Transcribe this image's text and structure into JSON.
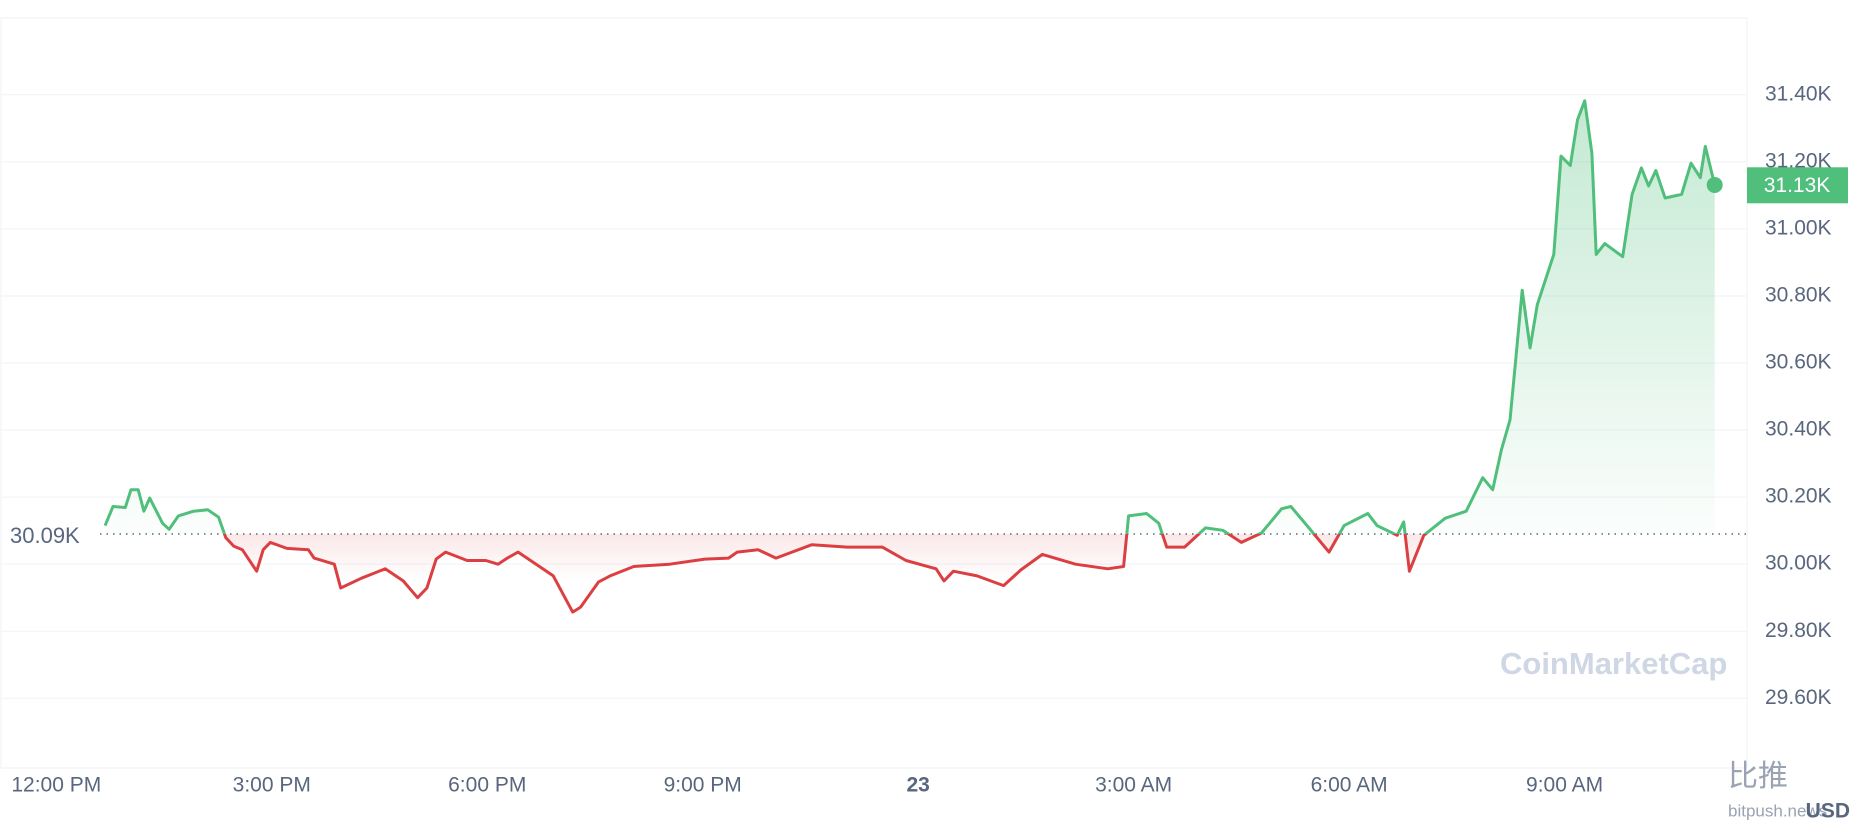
{
  "chart_data": {
    "type": "line",
    "x": [
      0.68,
      0.79,
      0.96,
      1.04,
      1.14,
      1.22,
      1.3,
      1.48,
      1.57,
      1.7,
      1.91,
      2.11,
      2.26,
      2.36,
      2.47,
      2.59,
      2.79,
      2.88,
      2.98,
      3.21,
      3.51,
      3.59,
      3.87,
      3.96,
      4.25,
      4.58,
      4.83,
      5.03,
      5.16,
      5.29,
      5.42,
      5.72,
      5.98,
      6.15,
      6.28,
      6.43,
      6.68,
      6.92,
      7.19,
      7.3,
      7.55,
      7.71,
      8.04,
      8.54,
      9.03,
      9.36,
      9.48,
      9.77,
      10.02,
      10.52,
      11.01,
      11.5,
      11.83,
      12.25,
      12.36,
      12.49,
      12.82,
      13.19,
      13.43,
      13.73,
      14.19,
      14.64,
      14.86,
      14.93,
      15.18,
      15.35,
      15.46,
      15.71,
      16.0,
      16.24,
      16.5,
      16.78,
      17.06,
      17.19,
      17.44,
      17.72,
      17.93,
      18.26,
      18.39,
      18.67,
      18.76,
      18.84,
      19.04,
      19.34,
      19.63,
      19.86,
      20.0,
      20.12,
      20.24,
      20.32,
      20.41,
      20.52,
      20.62,
      20.85,
      20.95,
      21.08,
      21.18,
      21.28,
      21.38,
      21.44,
      21.56,
      21.81,
      21.94,
      22.07,
      22.17,
      22.27,
      22.4,
      22.63,
      22.76,
      22.89,
      22.96,
      23.09
    ],
    "values": [
      30115,
      30172,
      30169,
      30222,
      30222,
      30158,
      30197,
      30122,
      30104,
      30144,
      30158,
      30162,
      30140,
      30079,
      30054,
      30043,
      29979,
      30043,
      30065,
      30047,
      30043,
      30018,
      30000,
      29929,
      29958,
      29986,
      29950,
      29900,
      29929,
      30015,
      30036,
      30011,
      30011,
      30000,
      30018,
      30036,
      30000,
      29965,
      29857,
      29872,
      29947,
      29965,
      29993,
      30000,
      30015,
      30018,
      30036,
      30043,
      30018,
      30058,
      30051,
      30051,
      30011,
      29986,
      29950,
      29979,
      29965,
      29936,
      29983,
      30029,
      30000,
      29986,
      29993,
      30144,
      30151,
      30122,
      30051,
      30051,
      30108,
      30101,
      30065,
      30093,
      30165,
      30172,
      30108,
      30036,
      30115,
      30151,
      30115,
      30086,
      30126,
      29979,
      30086,
      30137,
      30158,
      30258,
      30222,
      30341,
      30430,
      30609,
      30817,
      30645,
      30774,
      30924,
      31217,
      31189,
      31325,
      31382,
      31225,
      30924,
      30956,
      30917,
      31103,
      31182,
      31128,
      31174,
      31092,
      31103,
      31196,
      31153,
      31246,
      31131
    ],
    "up_color": "#4fbf7b",
    "down_color": "#dc3f41",
    "baseline": {
      "value": 30090,
      "label": "30.09K"
    },
    "last_price": {
      "value": 31130,
      "label": "31.13K"
    },
    "xlim": [
      -0.77,
      23.54
    ],
    "ylim": [
      29392,
      31629
    ],
    "xticks": [
      {
        "value": 0,
        "label": "12:00 PM"
      },
      {
        "value": 3,
        "label": "3:00 PM"
      },
      {
        "value": 6,
        "label": "6:00 PM"
      },
      {
        "value": 9,
        "label": "9:00 PM"
      },
      {
        "value": 12,
        "label": "23",
        "bold": true
      },
      {
        "value": 15,
        "label": "3:00 AM"
      },
      {
        "value": 18,
        "label": "6:00 AM"
      },
      {
        "value": 21,
        "label": "9:00 AM"
      }
    ],
    "yticks": [
      {
        "value": 29600,
        "label": "29.60K"
      },
      {
        "value": 29800,
        "label": "29.80K"
      },
      {
        "value": 30000,
        "label": "30.00K"
      },
      {
        "value": 30200,
        "label": "30.20K"
      },
      {
        "value": 30400,
        "label": "30.40K"
      },
      {
        "value": 30600,
        "label": "30.60K"
      },
      {
        "value": 30800,
        "label": "30.80K"
      },
      {
        "value": 31000,
        "label": "31.00K"
      },
      {
        "value": 31200,
        "label": "31.20K"
      },
      {
        "value": 31400,
        "label": "31.40K"
      }
    ],
    "grid": true,
    "currency": "USD",
    "watermarks": [
      "CoinMarketCap",
      "比推",
      "bitpush.news"
    ]
  }
}
